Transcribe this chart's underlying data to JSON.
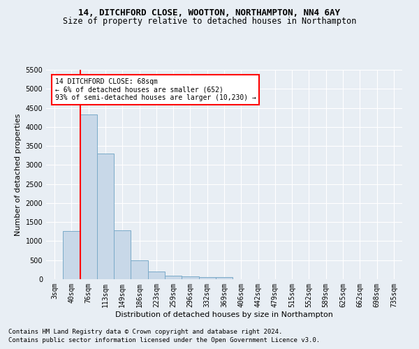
{
  "title1": "14, DITCHFORD CLOSE, WOOTTON, NORTHAMPTON, NN4 6AY",
  "title2": "Size of property relative to detached houses in Northampton",
  "xlabel": "Distribution of detached houses by size in Northampton",
  "ylabel": "Number of detached properties",
  "footnote1": "Contains HM Land Registry data © Crown copyright and database right 2024.",
  "footnote2": "Contains public sector information licensed under the Open Government Licence v3.0.",
  "bar_labels": [
    "3sqm",
    "40sqm",
    "76sqm",
    "113sqm",
    "149sqm",
    "186sqm",
    "223sqm",
    "259sqm",
    "296sqm",
    "332sqm",
    "369sqm",
    "406sqm",
    "442sqm",
    "479sqm",
    "515sqm",
    "552sqm",
    "589sqm",
    "625sqm",
    "662sqm",
    "698sqm",
    "735sqm"
  ],
  "bar_values": [
    0,
    1270,
    4330,
    3300,
    1280,
    490,
    210,
    90,
    75,
    60,
    60,
    0,
    0,
    0,
    0,
    0,
    0,
    0,
    0,
    0,
    0
  ],
  "bar_color": "#c8d8e8",
  "bar_edge_color": "#7aaac8",
  "vline_color": "red",
  "annotation_text": "14 DITCHFORD CLOSE: 68sqm\n← 6% of detached houses are smaller (652)\n93% of semi-detached houses are larger (10,230) →",
  "annotation_box_color": "white",
  "annotation_box_edge": "red",
  "ylim": [
    0,
    5500
  ],
  "yticks": [
    0,
    500,
    1000,
    1500,
    2000,
    2500,
    3000,
    3500,
    4000,
    4500,
    5000,
    5500
  ],
  "background_color": "#e8eef4",
  "grid_color": "white",
  "title1_fontsize": 9,
  "title2_fontsize": 8.5,
  "xlabel_fontsize": 8,
  "ylabel_fontsize": 8,
  "tick_fontsize": 7,
  "footnote_fontsize": 6.5
}
